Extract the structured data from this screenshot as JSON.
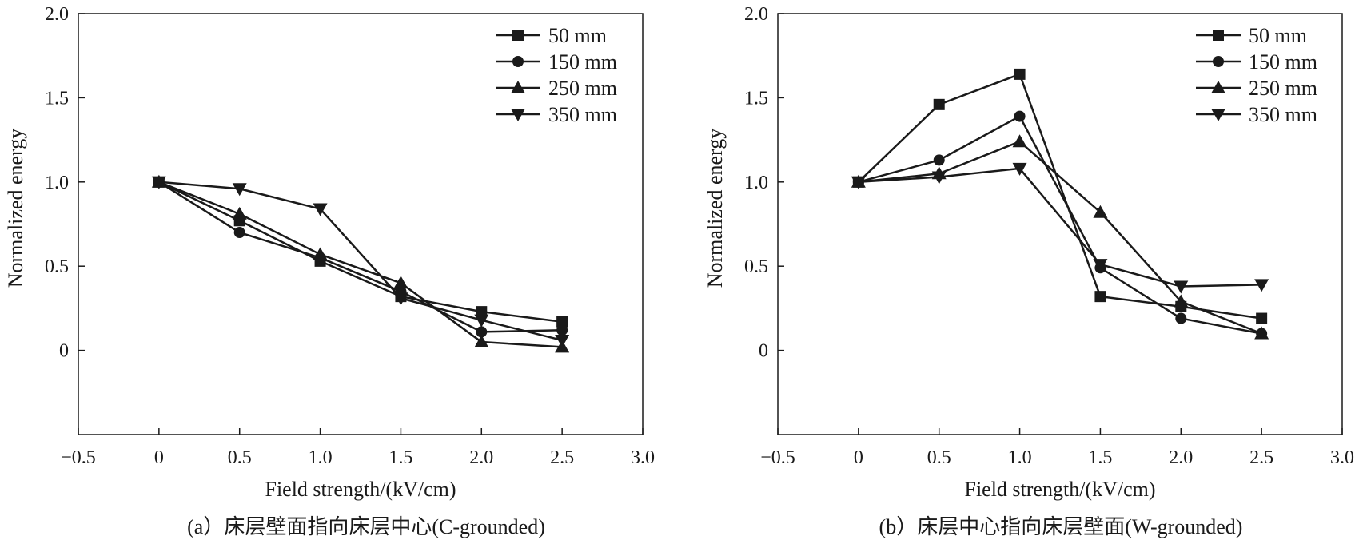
{
  "chart_data": [
    {
      "type": "line",
      "panel": "a",
      "caption": "(a）床层壁面指向床层中心(C-grounded)",
      "xlabel": "Field strength/(kV/cm)",
      "ylabel": "Normalized energy",
      "xlim": [
        -0.5,
        3.0
      ],
      "ylim": [
        -0.5,
        2.0
      ],
      "grid": false,
      "legend_position": "top-right",
      "xticks": [
        -0.5,
        0,
        0.5,
        1.0,
        1.5,
        2.0,
        2.5,
        3.0
      ],
      "xtick_labels": [
        "−0.5",
        "0",
        "0.5",
        "1.0",
        "1.5",
        "2.0",
        "2.5",
        "3.0"
      ],
      "yticks": [
        0,
        0.5,
        1.0,
        1.5,
        2.0
      ],
      "ytick_labels": [
        "0",
        "0.5",
        "1.0",
        "1.5",
        "2.0"
      ],
      "x": [
        0,
        0.5,
        1.0,
        1.5,
        2.0,
        2.5
      ],
      "series": [
        {
          "name": "50 mm",
          "marker": "square",
          "values": [
            1.0,
            0.77,
            0.53,
            0.32,
            0.23,
            0.17
          ]
        },
        {
          "name": "150 mm",
          "marker": "circle",
          "values": [
            1.0,
            0.7,
            0.55,
            0.35,
            0.11,
            0.12
          ]
        },
        {
          "name": "250 mm",
          "marker": "triangle-up",
          "values": [
            1.0,
            0.81,
            0.57,
            0.4,
            0.05,
            0.02
          ]
        },
        {
          "name": "350 mm",
          "marker": "triangle-down",
          "values": [
            1.0,
            0.96,
            0.84,
            0.31,
            0.18,
            0.06
          ]
        }
      ]
    },
    {
      "type": "line",
      "panel": "b",
      "caption": "(b）床层中心指向床层壁面(W-grounded)",
      "xlabel": "Field strength/(kV/cm)",
      "ylabel": "Normalized energy",
      "xlim": [
        -0.5,
        3.0
      ],
      "ylim": [
        -0.5,
        2.0
      ],
      "grid": false,
      "legend_position": "top-right",
      "xticks": [
        -0.5,
        0,
        0.5,
        1.0,
        1.5,
        2.0,
        2.5,
        3.0
      ],
      "xtick_labels": [
        "−0.5",
        "0",
        "0.5",
        "1.0",
        "1.5",
        "2.0",
        "2.5",
        "3.0"
      ],
      "yticks": [
        0,
        0.5,
        1.0,
        1.5,
        2.0
      ],
      "ytick_labels": [
        "0",
        "0.5",
        "1.0",
        "1.5",
        "2.0"
      ],
      "x": [
        0,
        0.5,
        1.0,
        1.5,
        2.0,
        2.5
      ],
      "series": [
        {
          "name": "50 mm",
          "marker": "square",
          "values": [
            1.0,
            1.46,
            1.64,
            0.32,
            0.26,
            0.19
          ]
        },
        {
          "name": "150 mm",
          "marker": "circle",
          "values": [
            1.0,
            1.13,
            1.39,
            0.49,
            0.19,
            0.1
          ]
        },
        {
          "name": "250 mm",
          "marker": "triangle-up",
          "values": [
            1.0,
            1.05,
            1.24,
            0.82,
            0.29,
            0.1
          ]
        },
        {
          "name": "350 mm",
          "marker": "triangle-down",
          "values": [
            1.0,
            1.03,
            1.08,
            0.51,
            0.38,
            0.39
          ]
        }
      ]
    }
  ],
  "colors": {
    "ink": "#1a1a1a",
    "background": "#ffffff"
  }
}
